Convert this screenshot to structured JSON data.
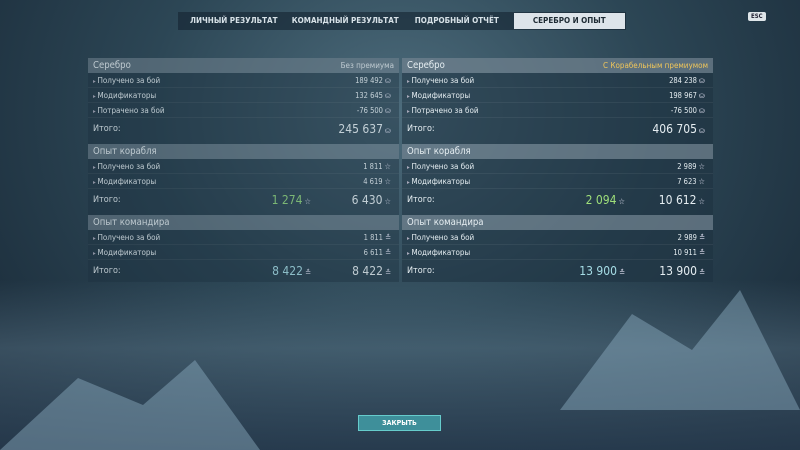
{
  "tabs": [
    {
      "label": "ЛИЧНЫЙ РЕЗУЛЬТАТ"
    },
    {
      "label": "КОМАНДНЫЙ РЕЗУЛЬТАТ"
    },
    {
      "label": "ПОДРОБНЫЙ ОТЧЁТ"
    },
    {
      "label": "СЕРЕБРО И ОПЫТ",
      "active": true
    }
  ],
  "esc_label": "ESC",
  "panels": [
    {
      "id": "left",
      "sections": [
        {
          "title": "Серебро",
          "tag": "Без премиума",
          "icon": "credits-icon",
          "rows": [
            {
              "label": "Получено за бой",
              "value": "189 492"
            },
            {
              "label": "Модификаторы",
              "value": "132 645"
            },
            {
              "label": "Потрачено за бой",
              "value": "-76 500"
            }
          ],
          "total_label": "Итого:",
          "total": "245 637"
        },
        {
          "title": "Опыт корабля",
          "icon": "star-icon",
          "rows": [
            {
              "label": "Получено за бой",
              "value": "1 811"
            },
            {
              "label": "Модификаторы",
              "value": "4 619"
            }
          ],
          "total_label": "Итого:",
          "total_free": "1 274",
          "total": "6 430"
        },
        {
          "title": "Опыт командира",
          "icon": "commander-xp-icon",
          "rows": [
            {
              "label": "Получено за бой",
              "value": "1 811"
            },
            {
              "label": "Модификаторы",
              "value": "6 611"
            }
          ],
          "total_label": "Итого:",
          "total_free": "8 422",
          "total": "8 422"
        }
      ]
    },
    {
      "id": "right",
      "sections": [
        {
          "title": "Серебро",
          "tag": "С Корабельным премиумом",
          "icon": "credits-icon",
          "rows": [
            {
              "label": "Получено за бой",
              "value": "284 238"
            },
            {
              "label": "Модификаторы",
              "value": "198 967"
            },
            {
              "label": "Потрачено за бой",
              "value": "-76 500"
            }
          ],
          "total_label": "Итого:",
          "total": "406 705"
        },
        {
          "title": "Опыт корабля",
          "icon": "star-icon",
          "rows": [
            {
              "label": "Получено за бой",
              "value": "2 989"
            },
            {
              "label": "Модификаторы",
              "value": "7 623"
            }
          ],
          "total_label": "Итого:",
          "total_free": "2 094",
          "total": "10 612"
        },
        {
          "title": "Опыт командира",
          "icon": "commander-xp-icon",
          "rows": [
            {
              "label": "Получено за бой",
              "value": "2 989"
            },
            {
              "label": "Модификаторы",
              "value": "10 911"
            }
          ],
          "total_label": "Итого:",
          "total_free": "13 900",
          "total": "13 900"
        }
      ]
    }
  ],
  "close_label": "ЗАКРЫТЬ",
  "colors": {
    "premium_tag": "#f0c65a",
    "free_xp": "#9fe07a",
    "close_button": "#3e8f9a"
  }
}
